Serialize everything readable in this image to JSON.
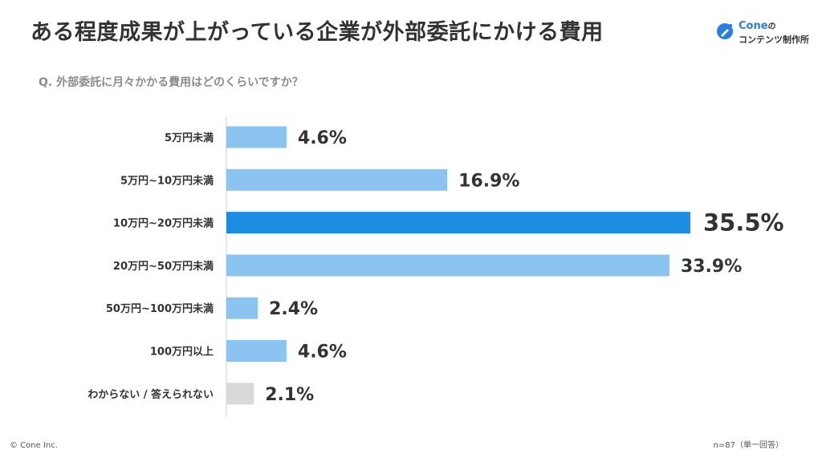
{
  "header": {
    "title": "ある程度成果が上がっている企業が外部委託にかける費用",
    "question": "Q.  外部委託に月々かかる費用はどのくらいですか？"
  },
  "logo": {
    "brand": "Cone",
    "brand_suffix": "の",
    "sub": "コンテンツ制作所",
    "icon": "pen-circle-icon",
    "color": "#2a7de1"
  },
  "footer": {
    "copyright": "© Cone Inc.",
    "sample_note": "n=87（単一回答）"
  },
  "chart_data": {
    "type": "bar",
    "orientation": "horizontal",
    "categories": [
      "5万円未満",
      "5万円~10万円未満",
      "10万円~20万円未満",
      "20万円~50万円未満",
      "50万円~100万円未満",
      "100万円以上",
      "わからない / 答えられない"
    ],
    "values": [
      4.6,
      16.9,
      35.5,
      33.9,
      2.4,
      4.6,
      2.1
    ],
    "value_labels": [
      "4.6%",
      "16.9%",
      "35.5%",
      "33.9%",
      "2.4%",
      "4.6%",
      "2.1%"
    ],
    "highlight_index": 2,
    "other_index": 6,
    "colors": {
      "default": "#8bc4f1",
      "highlight": "#1c8de0",
      "other": "#d9d9d9",
      "axis": "#cccccc",
      "label": "#333333"
    },
    "xlim": [
      0,
      35.5
    ],
    "grid": false,
    "legend": "none"
  }
}
